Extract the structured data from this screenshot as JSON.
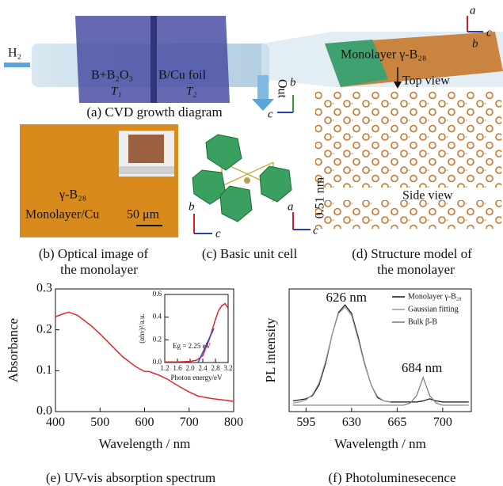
{
  "panels": {
    "a": {
      "h2": "H₂",
      "zone1": "B+B₂O₃",
      "t1": "T₁",
      "zone2": "B/Cu foil",
      "t2": "T₂",
      "out": "Out",
      "product": "Monolayer γ-B₂₈",
      "caption": "(a) CVD growth diagram",
      "axis_a": "a",
      "axis_b": "b",
      "axis_c": "c"
    },
    "b": {
      "material": "γ-B₂₈",
      "substrate": "Monolayer/Cu",
      "scale": "50 μm",
      "caption_1": "(b) Optical image of",
      "caption_2": "the monolayer"
    },
    "c": {
      "axis_b": "b",
      "axis_c": "c",
      "caption": "(c) Basic unit cell"
    },
    "d": {
      "top_view": "Top view",
      "side_view": "Side view",
      "thickness": "0.51 nm",
      "axis_b": "b",
      "axis_c": "c",
      "axis_a": "a",
      "axis_c2": "c",
      "caption_1": "(d) Structure model of",
      "caption_2": "the monolayer"
    },
    "e": {
      "caption": "(e) UV-vis absorption spectrum"
    },
    "f": {
      "caption": "(f) Photoluminesecence"
    }
  },
  "chart_data": [
    {
      "type": "line",
      "xlabel": "Wavelength / nm",
      "ylabel": "Absorbance",
      "xlim": [
        400,
        800
      ],
      "ylim": [
        0,
        0.3
      ],
      "xticks": [
        400,
        500,
        600,
        700,
        800
      ],
      "yticks": [
        {
          "value": 0,
          "label": "0.0"
        },
        0.1,
        0.2,
        0.3
      ],
      "series": [
        {
          "color": "#e8242a",
          "x": [
            400,
            420,
            430,
            450,
            480,
            500,
            520,
            550,
            580,
            600,
            610,
            630,
            650,
            680,
            700,
            720,
            750,
            780,
            800
          ],
          "values": [
            0.232,
            0.24,
            0.243,
            0.235,
            0.21,
            0.19,
            0.168,
            0.135,
            0.11,
            0.098,
            0.098,
            0.09,
            0.08,
            0.06,
            0.048,
            0.038,
            0.032,
            0.028,
            0.025
          ]
        }
      ]
    },
    {
      "type": "line",
      "xlabel": "Photon energy/eV",
      "ylabel": "(αhν)²/a.u.",
      "annotation": "Eg = 2.25 eV",
      "xlim": [
        1.2,
        3.2
      ],
      "ylim": [
        0,
        0.6
      ],
      "xticks": [
        1.2,
        1.6,
        {
          "value": 2,
          "label": "2.0"
        },
        2.4,
        2.8,
        3.2
      ],
      "yticks": [
        {
          "value": 0,
          "label": "0.0"
        },
        0.2,
        0.4,
        0.6
      ],
      "series": [
        {
          "color": "#e8242a",
          "x": [
            1.2,
            1.6,
            2.0,
            2.2,
            2.4,
            2.6,
            2.8,
            2.9,
            3.0,
            3.1,
            3.2
          ],
          "values": [
            0.005,
            0.005,
            0.01,
            0.02,
            0.06,
            0.2,
            0.38,
            0.46,
            0.5,
            0.52,
            0.48
          ]
        },
        {
          "color": "#2e4fd0",
          "x": [
            2.25,
            2.75
          ],
          "values": [
            0,
            0.3
          ]
        }
      ]
    },
    {
      "type": "line",
      "xlabel": "Wavelength / nm",
      "ylabel": "PL intensity",
      "xlim": [
        582,
        722
      ],
      "ylim": [
        0,
        1.15
      ],
      "xticks": [
        595,
        630,
        665,
        700
      ],
      "annotations": [
        {
          "text": "626 nm",
          "x": 626,
          "y": 1.06
        },
        {
          "text": "684 nm",
          "x": 684,
          "y": 0.4
        }
      ],
      "legend": "upper-right",
      "series": [
        {
          "name": "Monolayer γ-B₂₈",
          "color": "#111111",
          "x": [
            585,
            590,
            595,
            600,
            605,
            610,
            615,
            620,
            625,
            630,
            635,
            640,
            645,
            650,
            655,
            660,
            665,
            670,
            675,
            680,
            685,
            690,
            695,
            700,
            705,
            710,
            715,
            720
          ],
          "values": [
            0.1,
            0.11,
            0.12,
            0.15,
            0.25,
            0.45,
            0.72,
            0.93,
            1.0,
            0.92,
            0.7,
            0.45,
            0.25,
            0.13,
            0.1,
            0.09,
            0.09,
            0.09,
            0.09,
            0.09,
            0.1,
            0.12,
            0.1,
            0.09,
            0.09,
            0.09,
            0.09,
            0.09
          ]
        },
        {
          "name": "Gaussian fitting",
          "color": "#999999",
          "x": [
            585,
            590,
            595,
            600,
            605,
            610,
            615,
            620,
            625,
            630,
            635,
            640,
            645,
            650,
            655,
            660
          ],
          "values": [
            0.08,
            0.09,
            0.11,
            0.16,
            0.27,
            0.47,
            0.72,
            0.92,
            0.98,
            0.9,
            0.68,
            0.44,
            0.25,
            0.14,
            0.1,
            0.09
          ]
        },
        {
          "name": "Bulk β-B",
          "color": "#777777",
          "x": [
            585,
            590,
            595,
            600,
            605,
            610,
            615,
            620,
            625,
            630,
            635,
            640,
            645,
            650,
            655,
            660,
            665,
            670,
            675,
            680,
            685,
            690,
            695,
            700,
            705,
            710,
            715,
            720
          ],
          "values": [
            0.06,
            0.06,
            0.06,
            0.06,
            0.06,
            0.06,
            0.06,
            0.06,
            0.06,
            0.06,
            0.06,
            0.06,
            0.06,
            0.06,
            0.06,
            0.06,
            0.06,
            0.06,
            0.08,
            0.15,
            0.32,
            0.15,
            0.08,
            0.06,
            0.06,
            0.06,
            0.06,
            0.06
          ]
        }
      ]
    }
  ]
}
